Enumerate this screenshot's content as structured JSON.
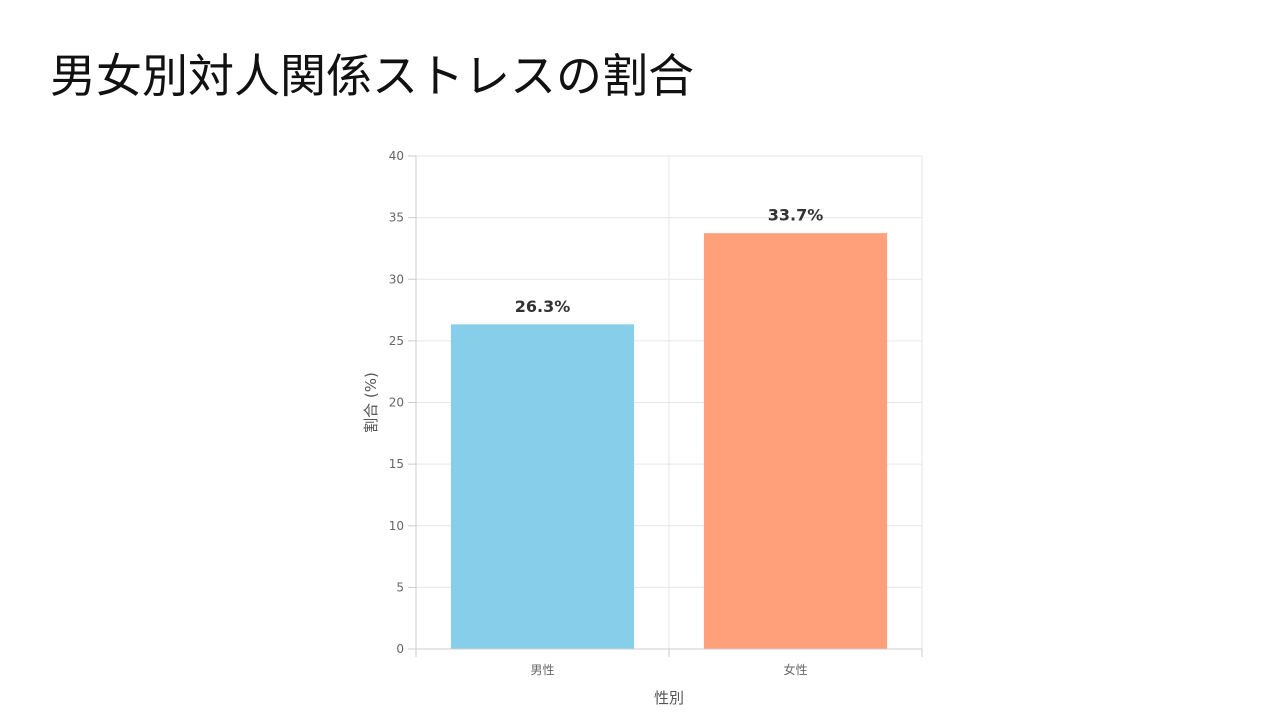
{
  "slide": {
    "title": "男女別対人関係ストレスの割合"
  },
  "chart_data": {
    "type": "bar",
    "title": "",
    "categories": [
      "男性",
      "女性"
    ],
    "values": [
      26.3,
      33.7
    ],
    "data_labels": [
      "26.3%",
      "33.7%"
    ],
    "colors": [
      "#87CEEB",
      "#FFA07A"
    ],
    "xlabel": "性別",
    "ylabel": "割合 (%)",
    "ylim": [
      0,
      40
    ],
    "yticks": [
      0,
      5,
      10,
      15,
      20,
      25,
      30,
      35,
      40
    ],
    "grid": true,
    "legend": "none"
  }
}
